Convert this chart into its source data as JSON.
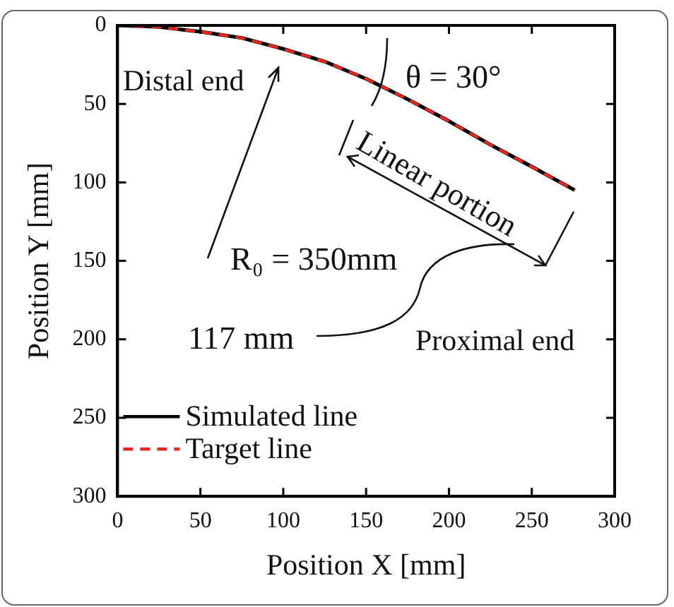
{
  "chart_data": {
    "type": "line",
    "xlabel": "Position X [mm]",
    "ylabel": "Position Y [mm]",
    "x": [
      0,
      25,
      50,
      75,
      100,
      125,
      150,
      175,
      200,
      225,
      250,
      276
    ],
    "series": [
      {
        "name": "Simulated line",
        "color": "#000000",
        "line_style": "solid",
        "values": [
          0,
          1,
          4,
          8,
          15,
          23,
          34,
          47,
          61,
          76,
          90,
          105
        ]
      },
      {
        "name": "Target line",
        "color": "#e8281e",
        "line_style": "dashed",
        "values": [
          0,
          1,
          4,
          8,
          15,
          23,
          34,
          47,
          61,
          76,
          90,
          105
        ]
      }
    ],
    "xlim": [
      0,
      300
    ],
    "ylim": [
      300,
      0
    ],
    "xticks": [
      0,
      50,
      100,
      150,
      200,
      250,
      300
    ],
    "yticks": [
      0,
      50,
      100,
      150,
      200,
      250,
      300
    ],
    "grid": false,
    "legend": "bottom left",
    "marker": "none",
    "annotations": [
      "Distal end",
      "θ = 30°",
      "Linear portion",
      "R₀ = 350mm",
      "117 mm",
      "Proximal end"
    ]
  }
}
